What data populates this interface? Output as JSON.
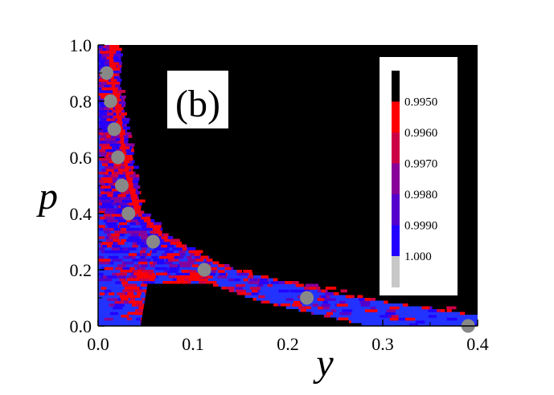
{
  "chart_data": {
    "type": "heatmap",
    "panel_label": "(b)",
    "xlabel": "y",
    "ylabel": "p",
    "xlim": [
      0,
      0.4
    ],
    "ylim": [
      0,
      1.0
    ],
    "x_ticks": [
      "0.0",
      "0.1",
      "0.2",
      "0.3",
      "0.4"
    ],
    "y_ticks": [
      "0.0",
      "0.2",
      "0.4",
      "0.6",
      "0.8",
      "1.0"
    ],
    "background_color": "#000000",
    "colorbar": {
      "labels": [
        "0.9950",
        "0.9960",
        "0.9970",
        "0.9980",
        "0.9990",
        "1.000"
      ],
      "colors": [
        "#000000",
        "#ff0000",
        "#cc0044",
        "#880099",
        "#5500cc",
        "#2200ff",
        "#c8c8c8"
      ]
    },
    "points": [
      {
        "x": 0.009,
        "y": 0.9
      },
      {
        "x": 0.013,
        "y": 0.8
      },
      {
        "x": 0.017,
        "y": 0.7
      },
      {
        "x": 0.021,
        "y": 0.6
      },
      {
        "x": 0.025,
        "y": 0.5
      },
      {
        "x": 0.032,
        "y": 0.4
      },
      {
        "x": 0.058,
        "y": 0.3
      },
      {
        "x": 0.112,
        "y": 0.2
      },
      {
        "x": 0.22,
        "y": 0.1
      },
      {
        "x": 0.39,
        "y": 0.0
      }
    ],
    "point_color": "#888888"
  }
}
